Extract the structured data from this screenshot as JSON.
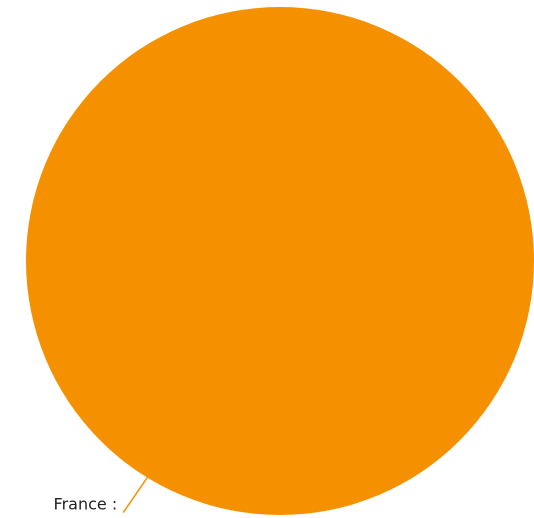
{
  "chart_data": {
    "type": "pie",
    "title": "",
    "slices": [
      {
        "label": "France :",
        "value": 100,
        "color": "#f59100"
      }
    ]
  }
}
